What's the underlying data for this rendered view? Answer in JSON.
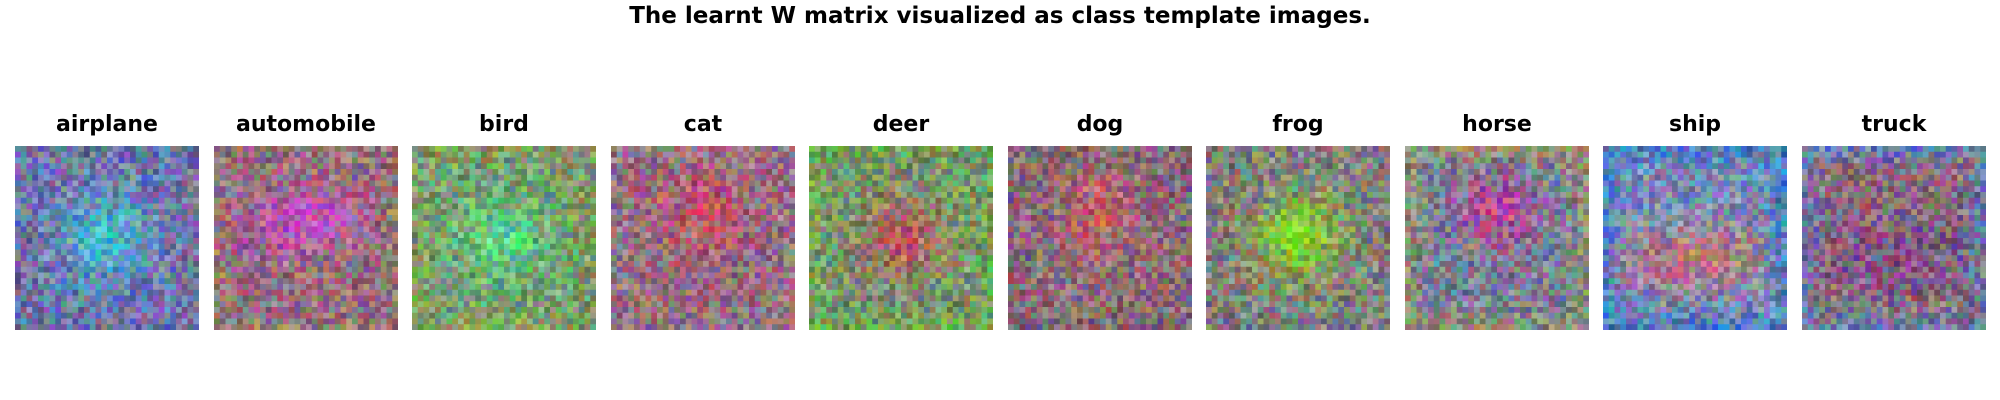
{
  "figure": {
    "title": "The learnt W matrix visualized as class template images."
  },
  "templates": [
    {
      "label": "airplane",
      "base": [
        112,
        122,
        172
      ],
      "spot": [
        60,
        200,
        215
      ],
      "spot_shape": "center",
      "frame": [
        110,
        105,
        150
      ]
    },
    {
      "label": "automobile",
      "base": [
        150,
        110,
        125
      ],
      "spot": [
        200,
        75,
        200
      ],
      "spot_shape": "wide-upper",
      "frame": [
        150,
        130,
        110
      ]
    },
    {
      "label": "bird",
      "base": [
        120,
        160,
        110
      ],
      "spot": [
        80,
        220,
        150
      ],
      "spot_shape": "center",
      "frame": [
        140,
        150,
        90
      ]
    },
    {
      "label": "cat",
      "base": [
        150,
        110,
        130
      ],
      "spot": [
        210,
        80,
        100
      ],
      "spot_shape": "upper",
      "frame": [
        150,
        120,
        140
      ]
    },
    {
      "label": "deer",
      "base": [
        120,
        150,
        110
      ],
      "spot": [
        200,
        80,
        90
      ],
      "spot_shape": "center",
      "frame": [
        110,
        170,
        70
      ]
    },
    {
      "label": "dog",
      "base": [
        140,
        110,
        120
      ],
      "spot": [
        200,
        90,
        100
      ],
      "spot_shape": "upper",
      "frame": [
        120,
        100,
        110
      ]
    },
    {
      "label": "frog",
      "base": [
        130,
        130,
        120
      ],
      "spot": [
        140,
        220,
        30
      ],
      "spot_shape": "center",
      "frame": [
        130,
        120,
        130
      ]
    },
    {
      "label": "horse",
      "base": [
        120,
        130,
        150
      ],
      "spot": [
        200,
        60,
        150
      ],
      "spot_shape": "upper",
      "frame": [
        160,
        150,
        90
      ]
    },
    {
      "label": "ship",
      "base": [
        120,
        140,
        180
      ],
      "spot": [
        200,
        120,
        110
      ],
      "spot_shape": "lower-wide",
      "frame": [
        40,
        120,
        200
      ]
    },
    {
      "label": "truck",
      "base": [
        140,
        110,
        120
      ],
      "spot": [
        120,
        80,
        140
      ],
      "spot_shape": "wide-lower",
      "frame": [
        80,
        140,
        210
      ]
    }
  ]
}
